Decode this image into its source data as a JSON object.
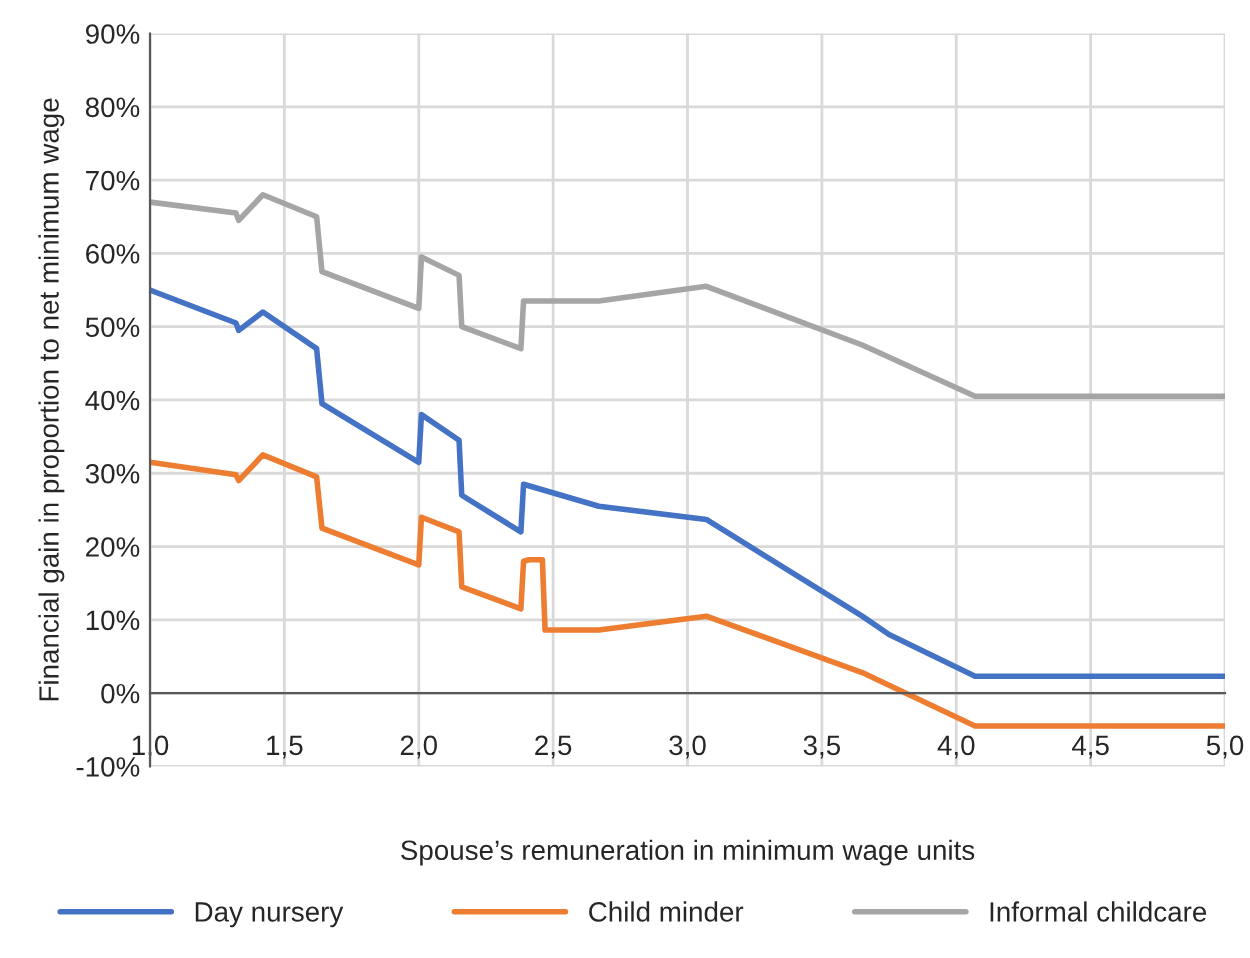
{
  "chart_data": {
    "type": "line",
    "xlabel": "Spouse’s remuneration in minimum wage units",
    "ylabel": "Financial gain in proportion to net minimum wage",
    "xlim": [
      1.0,
      5.0
    ],
    "xticks": [
      {
        "value": 1.0,
        "label": "1,0"
      },
      {
        "value": 1.5,
        "label": "1,5"
      },
      {
        "value": 2.0,
        "label": "2,0"
      },
      {
        "value": 2.5,
        "label": "2,5"
      },
      {
        "value": 3.0,
        "label": "3,0"
      },
      {
        "value": 3.5,
        "label": "3,5"
      },
      {
        "value": 4.0,
        "label": "4,0"
      },
      {
        "value": 4.5,
        "label": "4,5"
      },
      {
        "value": 5.0,
        "label": "5,0"
      }
    ],
    "ylim": [
      -10,
      90
    ],
    "yticks": [
      {
        "value": -10,
        "label": "-10%"
      },
      {
        "value": 0,
        "label": "0%"
      },
      {
        "value": 10,
        "label": "10%"
      },
      {
        "value": 20,
        "label": "20%"
      },
      {
        "value": 30,
        "label": "30%"
      },
      {
        "value": 40,
        "label": "40%"
      },
      {
        "value": 50,
        "label": "50%"
      },
      {
        "value": 60,
        "label": "60%"
      },
      {
        "value": 70,
        "label": "70%"
      },
      {
        "value": 80,
        "label": "80%"
      },
      {
        "value": 90,
        "label": "90%"
      }
    ],
    "grid": true,
    "legend": "bottom",
    "marker": "none",
    "line_style": "solid",
    "series": [
      {
        "name": "Day nursery",
        "color": "#4472c4",
        "x": [
          1.0,
          1.32,
          1.33,
          1.42,
          1.62,
          1.64,
          2.0,
          2.01,
          2.15,
          2.16,
          2.38,
          2.39,
          2.67,
          3.07,
          3.65,
          3.75,
          4.07,
          5.0
        ],
        "values": [
          55,
          50.5,
          49.5,
          52,
          47,
          39.5,
          31.5,
          38,
          34.5,
          27,
          22,
          28.5,
          25.5,
          23.7,
          10.5,
          8,
          2.3,
          2.3
        ]
      },
      {
        "name": "Child minder",
        "color": "#ed7d31",
        "x": [
          1.0,
          1.32,
          1.33,
          1.42,
          1.62,
          1.64,
          2.0,
          2.01,
          2.15,
          2.16,
          2.38,
          2.39,
          2.41,
          2.46,
          2.47,
          2.67,
          3.07,
          3.65,
          4.07,
          5.0
        ],
        "values": [
          31.5,
          29.8,
          29,
          32.5,
          29.5,
          22.5,
          17.5,
          24,
          22,
          14.5,
          11.5,
          18,
          18.2,
          18.2,
          8.6,
          8.6,
          10.5,
          2.8,
          -4.5,
          -4.5
        ]
      },
      {
        "name": "Informal childcare",
        "color": "#a5a5a5",
        "x": [
          1.0,
          1.32,
          1.33,
          1.42,
          1.62,
          1.64,
          2.0,
          2.01,
          2.15,
          2.16,
          2.38,
          2.39,
          2.67,
          3.07,
          3.65,
          4.07,
          5.0
        ],
        "values": [
          67,
          65.5,
          64.5,
          68,
          65,
          57.5,
          52.5,
          59.5,
          57,
          50,
          47,
          53.5,
          53.5,
          55.5,
          47.5,
          40.5,
          40.5
        ]
      }
    ]
  }
}
